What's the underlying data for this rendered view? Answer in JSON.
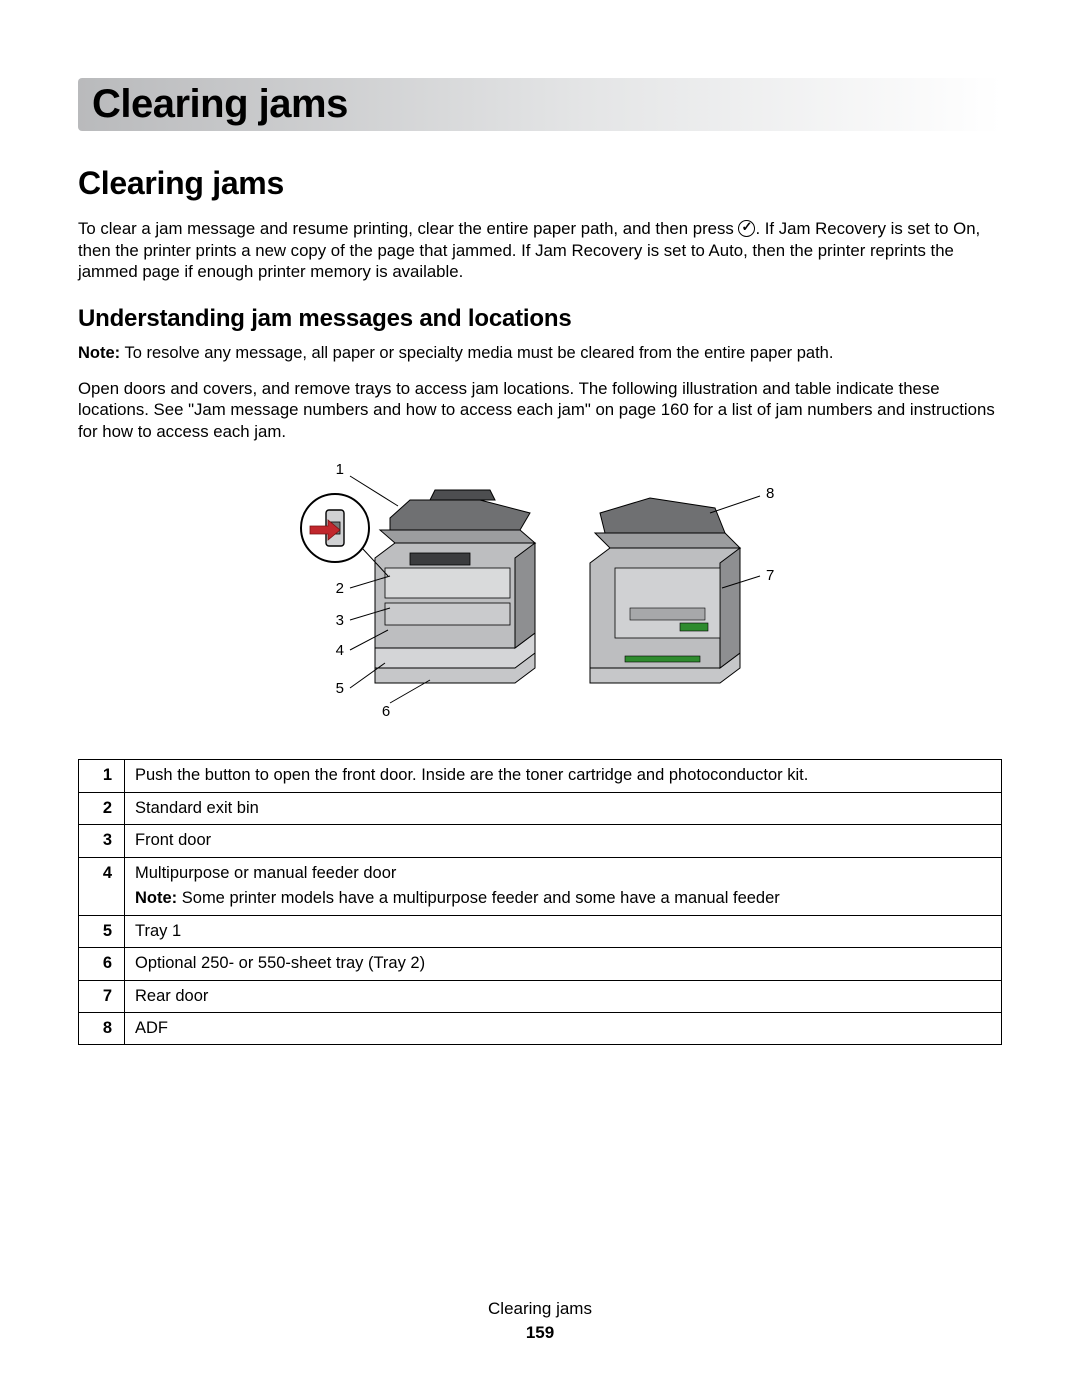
{
  "chapter_title": "Clearing jams",
  "section_title": "Clearing jams",
  "intro_part1": "To clear a jam message and resume printing, clear the entire paper path, and then press ",
  "intro_part2": ". If Jam Recovery is set to On, then the printer prints a new copy of the page that jammed. If Jam Recovery is set to Auto, then the printer reprints the jammed page if enough printer memory is available.",
  "subheading": "Understanding jam messages and locations",
  "note_label": "Note:",
  "note_text": " To resolve any message, all paper or specialty media must be cleared from the entire paper path.",
  "para2": "Open doors and covers, and remove trays to access jam locations. The following illustration and table indicate these locations. See \"Jam message numbers and how to access each jam\" on page 160 for a list of jam numbers and instructions for how to access each jam.",
  "diagram": {
    "left_labels": [
      "1",
      "2",
      "3",
      "4",
      "5",
      "6"
    ],
    "right_labels": [
      "8",
      "7"
    ],
    "colors": {
      "body": "#c6c7c9",
      "dark": "#5c5d5f",
      "line": "#000000",
      "arrow": "#c1272d"
    }
  },
  "table_rows": [
    {
      "n": "1",
      "text": "Push the button to open the front door. Inside are the toner cartridge and photoconductor kit."
    },
    {
      "n": "2",
      "text": "Standard exit bin"
    },
    {
      "n": "3",
      "text": "Front door"
    },
    {
      "n": "4",
      "text": "Multipurpose or manual feeder door",
      "note": " Some printer models have a multipurpose feeder and some have a manual feeder"
    },
    {
      "n": "5",
      "text": "Tray 1"
    },
    {
      "n": "6",
      "text": "Optional 250- or 550-sheet tray (Tray 2)"
    },
    {
      "n": "7",
      "text": "Rear door"
    },
    {
      "n": "8",
      "text": "ADF"
    }
  ],
  "footer_title": "Clearing jams",
  "footer_page": "159"
}
